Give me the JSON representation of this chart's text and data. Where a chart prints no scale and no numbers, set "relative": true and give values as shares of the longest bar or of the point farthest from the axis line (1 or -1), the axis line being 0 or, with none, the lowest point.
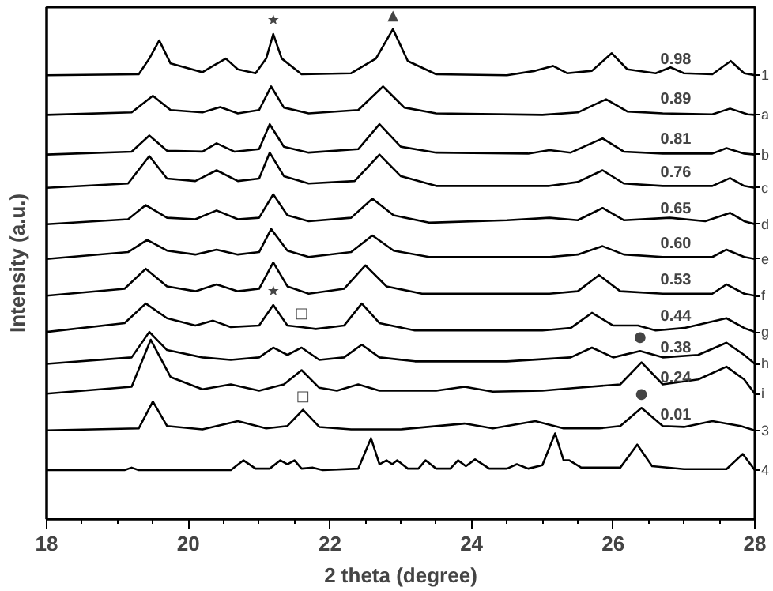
{
  "chart_data": {
    "type": "line",
    "relative": true,
    "xlabel": "2 theta (degree)",
    "ylabel": "Intensity (a.u.)",
    "xlim": [
      18,
      28
    ],
    "xticks": [
      18,
      20,
      22,
      24,
      26,
      28
    ],
    "tick_labels": "x",
    "legend": "right",
    "marker": "none",
    "line_style": "solid",
    "series": [
      {
        "name": "1",
        "color": "#000000",
        "x": [
          18,
          19.3,
          19.45,
          19.59,
          19.75,
          20.2,
          20.35,
          20.53,
          20.7,
          20.95,
          21.1,
          21.2,
          21.32,
          21.6,
          22.3,
          22.65,
          22.89,
          23.1,
          23.5,
          24.5,
          24.9,
          25.15,
          25.35,
          25.7,
          25.98,
          26.2,
          26.6,
          26.81,
          27.0,
          27.4,
          27.66,
          27.85,
          28
        ],
        "values": [
          0.906,
          0.908,
          0.94,
          0.977,
          0.93,
          0.912,
          0.925,
          0.94,
          0.918,
          0.91,
          0.94,
          0.99,
          0.94,
          0.908,
          0.91,
          0.94,
          1.0,
          0.935,
          0.908,
          0.906,
          0.915,
          0.925,
          0.91,
          0.915,
          0.951,
          0.918,
          0.91,
          0.922,
          0.91,
          0.908,
          0.935,
          0.91,
          0.906
        ]
      },
      {
        "name": "a",
        "color": "#000000",
        "x": [
          18,
          19.2,
          19.5,
          19.75,
          20.2,
          20.45,
          20.7,
          21.0,
          21.17,
          21.35,
          21.7,
          22.4,
          22.75,
          23.05,
          23.5,
          25.0,
          25.5,
          25.9,
          26.2,
          26.7,
          27.4,
          27.65,
          27.9,
          28
        ],
        "values": [
          0.825,
          0.83,
          0.864,
          0.835,
          0.83,
          0.841,
          0.828,
          0.835,
          0.883,
          0.84,
          0.828,
          0.835,
          0.883,
          0.84,
          0.828,
          0.825,
          0.83,
          0.857,
          0.832,
          0.828,
          0.826,
          0.838,
          0.826,
          0.825
        ]
      },
      {
        "name": "b",
        "color": "#000000",
        "x": [
          18,
          19.2,
          19.45,
          19.7,
          20.2,
          20.4,
          20.65,
          21.0,
          21.15,
          21.35,
          21.7,
          22.4,
          22.7,
          23.0,
          23.5,
          24.8,
          25.1,
          25.4,
          25.85,
          26.15,
          26.7,
          27.4,
          27.6,
          27.85,
          28
        ],
        "values": [
          0.744,
          0.75,
          0.783,
          0.752,
          0.75,
          0.767,
          0.75,
          0.755,
          0.806,
          0.76,
          0.748,
          0.755,
          0.806,
          0.76,
          0.748,
          0.746,
          0.753,
          0.748,
          0.777,
          0.75,
          0.746,
          0.746,
          0.757,
          0.746,
          0.744
        ]
      },
      {
        "name": "c",
        "color": "#000000",
        "x": [
          18,
          19.15,
          19.45,
          19.7,
          20.1,
          20.4,
          20.7,
          21.0,
          21.15,
          21.35,
          21.7,
          22.35,
          22.7,
          23.0,
          23.5,
          25.1,
          25.5,
          25.85,
          26.15,
          26.7,
          27.4,
          27.65,
          27.85,
          28
        ],
        "values": [
          0.676,
          0.685,
          0.741,
          0.695,
          0.69,
          0.712,
          0.69,
          0.695,
          0.748,
          0.7,
          0.685,
          0.69,
          0.744,
          0.7,
          0.68,
          0.68,
          0.688,
          0.712,
          0.685,
          0.68,
          0.68,
          0.696,
          0.68,
          0.676
        ]
      },
      {
        "name": "d",
        "color": "#000000",
        "x": [
          18,
          19.15,
          19.4,
          19.7,
          20.1,
          20.4,
          20.7,
          21.0,
          21.2,
          21.4,
          21.7,
          22.3,
          22.6,
          22.9,
          23.4,
          24.5,
          25.1,
          25.5,
          25.85,
          26.15,
          26.8,
          27.3,
          27.65,
          27.85,
          28
        ],
        "values": [
          0.602,
          0.612,
          0.641,
          0.615,
          0.612,
          0.63,
          0.612,
          0.615,
          0.663,
          0.62,
          0.608,
          0.615,
          0.654,
          0.62,
          0.605,
          0.61,
          0.615,
          0.61,
          0.635,
          0.61,
          0.615,
          0.608,
          0.625,
          0.608,
          0.602
        ]
      },
      {
        "name": "e",
        "color": "#000000",
        "x": [
          18,
          19.15,
          19.42,
          19.7,
          20.1,
          20.4,
          20.7,
          21.0,
          21.17,
          21.4,
          21.7,
          22.3,
          22.6,
          22.9,
          23.4,
          25.1,
          25.5,
          25.85,
          26.15,
          26.7,
          27.4,
          27.6,
          27.85,
          28
        ],
        "values": [
          0.531,
          0.545,
          0.57,
          0.548,
          0.54,
          0.55,
          0.54,
          0.545,
          0.592,
          0.548,
          0.535,
          0.545,
          0.579,
          0.548,
          0.535,
          0.535,
          0.54,
          0.557,
          0.54,
          0.535,
          0.535,
          0.55,
          0.535,
          0.531
        ]
      },
      {
        "name": "f",
        "color": "#000000",
        "x": [
          18,
          19.1,
          19.4,
          19.7,
          20.1,
          20.4,
          20.7,
          21.0,
          21.2,
          21.4,
          21.7,
          22.2,
          22.5,
          22.8,
          23.3,
          25.1,
          25.5,
          25.8,
          26.1,
          26.7,
          27.4,
          27.6,
          27.85,
          28
        ],
        "values": [
          0.456,
          0.47,
          0.511,
          0.475,
          0.465,
          0.479,
          0.465,
          0.47,
          0.524,
          0.475,
          0.46,
          0.47,
          0.518,
          0.475,
          0.46,
          0.46,
          0.465,
          0.498,
          0.465,
          0.46,
          0.46,
          0.479,
          0.46,
          0.456
        ]
      },
      {
        "name": "g",
        "color": "#000000",
        "x": [
          18,
          19.1,
          19.4,
          19.7,
          20.1,
          20.35,
          20.6,
          21.0,
          21.2,
          21.4,
          21.6,
          21.8,
          22.2,
          22.45,
          22.7,
          23.2,
          25.0,
          25.4,
          25.7,
          26.0,
          26.35,
          26.6,
          27.0,
          27.6,
          27.85,
          28
        ],
        "values": [
          0.382,
          0.4,
          0.44,
          0.41,
          0.395,
          0.405,
          0.392,
          0.395,
          0.437,
          0.395,
          0.392,
          0.388,
          0.395,
          0.44,
          0.4,
          0.385,
          0.385,
          0.39,
          0.421,
          0.395,
          0.395,
          0.385,
          0.39,
          0.41,
          0.39,
          0.382
        ]
      },
      {
        "name": "h",
        "color": "#000000",
        "x": [
          18,
          19.2,
          19.45,
          19.7,
          20.2,
          20.6,
          21.0,
          21.2,
          21.4,
          21.6,
          21.85,
          22.2,
          22.45,
          22.7,
          23.2,
          24.5,
          25.4,
          25.7,
          26.0,
          26.38,
          26.7,
          27.2,
          27.6,
          27.85,
          28
        ],
        "values": [
          0.317,
          0.33,
          0.382,
          0.345,
          0.33,
          0.325,
          0.33,
          0.35,
          0.335,
          0.35,
          0.325,
          0.33,
          0.356,
          0.33,
          0.322,
          0.322,
          0.33,
          0.35,
          0.33,
          0.343,
          0.33,
          0.335,
          0.36,
          0.335,
          0.317
        ]
      },
      {
        "name": "i",
        "color": "#000000",
        "x": [
          18,
          19.2,
          19.47,
          19.75,
          20.2,
          20.6,
          21.0,
          21.35,
          21.6,
          21.85,
          22.1,
          22.4,
          22.7,
          23.5,
          23.9,
          24.3,
          25.0,
          25.5,
          26.1,
          26.4,
          26.7,
          27.2,
          27.6,
          27.85,
          28
        ],
        "values": [
          0.256,
          0.27,
          0.366,
          0.29,
          0.265,
          0.275,
          0.262,
          0.275,
          0.304,
          0.268,
          0.262,
          0.275,
          0.262,
          0.262,
          0.27,
          0.26,
          0.262,
          0.268,
          0.275,
          0.32,
          0.275,
          0.285,
          0.311,
          0.285,
          0.256
        ]
      },
      {
        "name": "3",
        "color": "#000000",
        "x": [
          18,
          19.3,
          19.5,
          19.7,
          20.2,
          20.7,
          21.1,
          21.4,
          21.62,
          21.85,
          22.3,
          23.0,
          23.9,
          24.3,
          24.9,
          25.3,
          25.8,
          26.1,
          26.4,
          26.7,
          27.0,
          27.4,
          27.8,
          28
        ],
        "values": [
          0.181,
          0.185,
          0.24,
          0.19,
          0.183,
          0.2,
          0.185,
          0.19,
          0.223,
          0.188,
          0.183,
          0.183,
          0.195,
          0.185,
          0.2,
          0.185,
          0.185,
          0.19,
          0.227,
          0.19,
          0.188,
          0.2,
          0.19,
          0.181
        ]
      },
      {
        "name": "4",
        "color": "#000000",
        "x": [
          18,
          19.1,
          19.2,
          19.3,
          20.6,
          20.78,
          20.95,
          21.15,
          21.3,
          21.4,
          21.5,
          21.6,
          21.76,
          21.9,
          22.4,
          22.58,
          22.7,
          22.8,
          22.88,
          22.95,
          23.1,
          23.25,
          23.35,
          23.5,
          23.7,
          23.81,
          23.92,
          24.05,
          24.25,
          24.5,
          24.64,
          24.8,
          25.0,
          25.18,
          25.3,
          25.38,
          25.55,
          26.1,
          26.34,
          26.55,
          27.0,
          27.6,
          27.83,
          28
        ],
        "values": [
          0.1,
          0.1,
          0.105,
          0.1,
          0.1,
          0.12,
          0.103,
          0.103,
          0.12,
          0.112,
          0.12,
          0.103,
          0.105,
          0.1,
          0.103,
          0.165,
          0.112,
          0.12,
          0.112,
          0.12,
          0.103,
          0.103,
          0.12,
          0.103,
          0.103,
          0.12,
          0.108,
          0.122,
          0.103,
          0.103,
          0.112,
          0.103,
          0.11,
          0.175,
          0.12,
          0.12,
          0.105,
          0.105,
          0.152,
          0.108,
          0.102,
          0.102,
          0.133,
          0.1
        ]
      }
    ],
    "annotations": [
      "0.98",
      "0.89",
      "0.81",
      "0.76",
      "0.65",
      "0.60",
      "0.53",
      "0.44",
      "0.38",
      "0.24",
      "0.01",
      {
        "text": "★",
        "x": 21.2,
        "y": 0.99
      },
      {
        "text": "▲",
        "x": 22.89,
        "y": 1.0
      },
      {
        "text": "★",
        "x": 21.2,
        "y": 0.437
      },
      {
        "text": "□",
        "x": 21.6,
        "y": 0.392
      },
      {
        "text": "●",
        "x": 26.38,
        "y": 0.343
      },
      {
        "text": "□",
        "x": 21.62,
        "y": 0.223
      },
      {
        "text": "●",
        "x": 26.4,
        "y": 0.227
      }
    ]
  }
}
